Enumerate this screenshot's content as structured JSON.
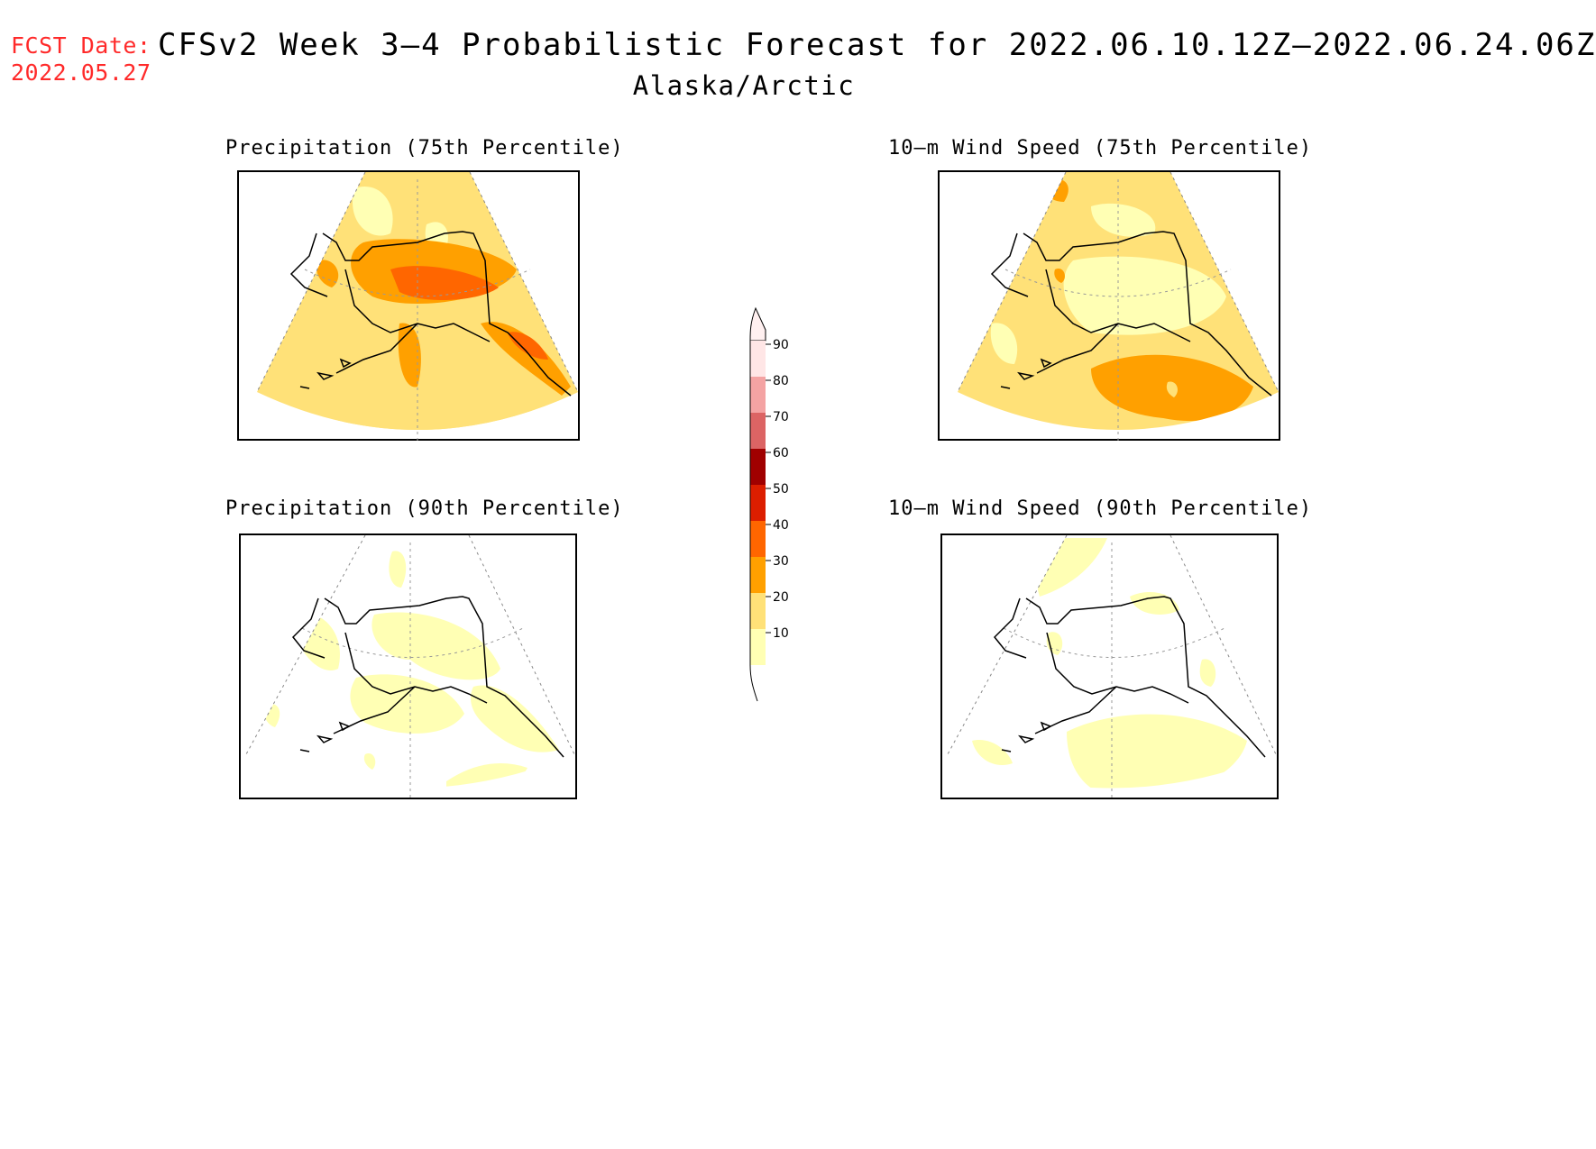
{
  "header": {
    "fcst_label": "FCST Date:",
    "fcst_date": "2022.05.27",
    "title": "CFSv2 Week 3–4 Probabilistic Forecast for 2022.06.10.12Z–2022.06.24.06Z",
    "region": "Alaska/Arctic"
  },
  "panels": [
    {
      "id": "precip75",
      "title": "Precipitation (75th Percentile)"
    },
    {
      "id": "wind75",
      "title": "10–m Wind Speed (75th Percentile)"
    },
    {
      "id": "precip90",
      "title": "Precipitation (90th Percentile)"
    },
    {
      "id": "wind90",
      "title": "10–m Wind Speed (90th Percentile)"
    }
  ],
  "legend": {
    "levels": [
      {
        "label": "90",
        "color": "#ffe6e6"
      },
      {
        "label": "80",
        "color": "#f4a3a3"
      },
      {
        "label": "70",
        "color": "#dc6464"
      },
      {
        "label": "60",
        "color": "#a00000"
      },
      {
        "label": "50",
        "color": "#dc1e00"
      },
      {
        "label": "40",
        "color": "#ff6600"
      },
      {
        "label": "30",
        "color": "#ffa000"
      },
      {
        "label": "20",
        "color": "#ffe178"
      },
      {
        "label": "10",
        "color": "#ffffb4"
      }
    ]
  },
  "colors": {
    "fill_10_20": "#ffffb4",
    "fill_20_30": "#ffe178",
    "fill_30_40": "#ffa000",
    "fill_40_50": "#ff6600",
    "fcst_red": "#ff2a2a"
  }
}
